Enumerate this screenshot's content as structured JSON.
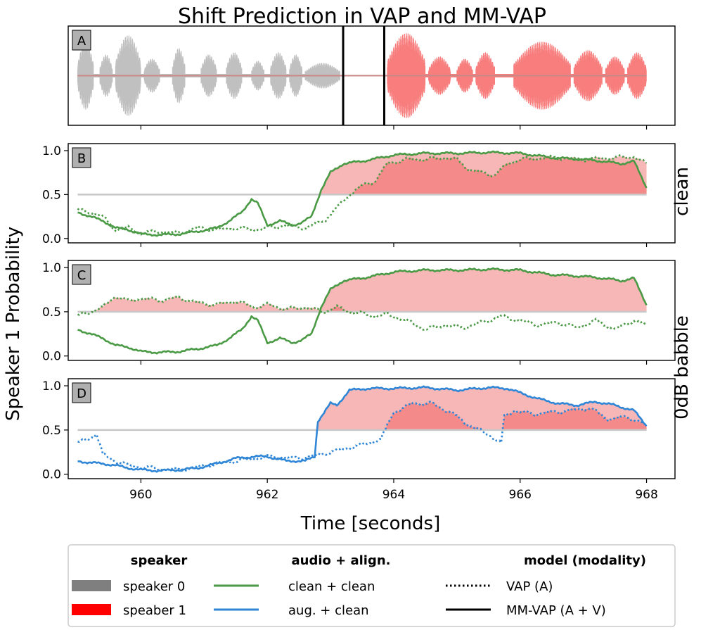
{
  "chart_data": {
    "type": "line",
    "title": "Shift Prediction in VAP and MM-VAP",
    "xlabel": "Time [seconds]",
    "ylabel": "Speaker 1 Probability",
    "xlim": [
      958.85,
      968.45
    ],
    "ylim": [
      -0.05,
      1.08
    ],
    "xticks": [
      960,
      962,
      964,
      966,
      968
    ],
    "yticks": [
      0.0,
      0.5,
      1.0
    ],
    "ytick_labels": [
      "0.0",
      "0.5",
      "1.0"
    ],
    "threshold": 0.5,
    "panels": [
      {
        "label": "A",
        "type": "waveform",
        "ylabel_right": "",
        "events": [
          963.2,
          963.85
        ],
        "segments": [
          {
            "speaker": "speaker 0",
            "start": 959.0,
            "end": 963.15,
            "bursts": [
              [
                959.0,
                959.25,
                0.8
              ],
              [
                959.35,
                959.55,
                0.5
              ],
              [
                959.6,
                960.0,
                0.95
              ],
              [
                960.05,
                960.3,
                0.4
              ],
              [
                960.5,
                960.7,
                0.65
              ],
              [
                960.95,
                961.2,
                0.5
              ],
              [
                961.35,
                961.6,
                0.55
              ],
              [
                961.75,
                961.95,
                0.35
              ],
              [
                962.05,
                962.3,
                0.55
              ],
              [
                962.35,
                962.55,
                0.5
              ],
              [
                962.6,
                963.15,
                0.3
              ]
            ]
          },
          {
            "speaker": "speaker 1",
            "start": 963.9,
            "end": 968.0,
            "bursts": [
              [
                963.9,
                964.5,
                1.0
              ],
              [
                964.55,
                964.9,
                0.45
              ],
              [
                965.0,
                965.25,
                0.4
              ],
              [
                965.3,
                965.6,
                0.55
              ],
              [
                965.9,
                966.8,
                0.8
              ],
              [
                966.85,
                967.3,
                0.6
              ],
              [
                967.35,
                967.65,
                0.45
              ],
              [
                967.7,
                968.0,
                0.55
              ]
            ]
          }
        ]
      },
      {
        "label": "B",
        "ylabel_right": "clean",
        "series": [
          {
            "name": "clean + clean",
            "model": "MM-VAP (A + V)",
            "color": "#4a9a45",
            "style": "solid",
            "x": [
              959.0,
              959.2,
              959.4,
              959.6,
              959.8,
              960.0,
              960.3,
              960.6,
              960.9,
              961.2,
              961.4,
              961.6,
              961.75,
              961.85,
              962.0,
              962.2,
              962.4,
              962.55,
              962.7,
              962.85,
              963.0,
              963.2,
              963.5,
              963.8,
              964.0,
              964.5,
              965.0,
              965.5,
              966.0,
              966.5,
              967.0,
              967.3,
              967.6,
              967.8,
              968.0
            ],
            "y": [
              0.3,
              0.25,
              0.2,
              0.12,
              0.1,
              0.05,
              0.04,
              0.05,
              0.08,
              0.12,
              0.2,
              0.3,
              0.45,
              0.4,
              0.15,
              0.2,
              0.15,
              0.18,
              0.25,
              0.55,
              0.75,
              0.85,
              0.88,
              0.92,
              0.95,
              0.97,
              0.97,
              0.98,
              0.97,
              0.92,
              0.9,
              0.88,
              0.85,
              0.88,
              0.58
            ]
          },
          {
            "name": "clean + clean",
            "model": "VAP (A)",
            "color": "#4a9a45",
            "style": "dotted",
            "x": [
              959.0,
              959.2,
              959.4,
              959.6,
              959.8,
              960.0,
              960.3,
              960.6,
              960.9,
              961.2,
              961.5,
              961.8,
              962.0,
              962.3,
              962.6,
              962.9,
              963.1,
              963.3,
              963.5,
              963.7,
              963.9,
              964.2,
              964.5,
              964.8,
              965.0,
              965.2,
              965.4,
              965.6,
              965.8,
              966.0,
              966.5,
              967.0,
              967.5,
              967.8,
              968.0
            ],
            "y": [
              0.32,
              0.3,
              0.25,
              0.1,
              0.12,
              0.06,
              0.08,
              0.06,
              0.12,
              0.1,
              0.12,
              0.1,
              0.12,
              0.15,
              0.12,
              0.2,
              0.35,
              0.5,
              0.6,
              0.65,
              0.85,
              0.9,
              0.9,
              0.92,
              0.9,
              0.78,
              0.75,
              0.72,
              0.85,
              0.9,
              0.92,
              0.9,
              0.92,
              0.93,
              0.85
            ]
          }
        ]
      },
      {
        "label": "C",
        "ylabel_right": "0dB babble",
        "series": [
          {
            "name": "clean + clean",
            "model": "MM-VAP (A + V)",
            "color": "#4a9a45",
            "style": "solid",
            "x": [
              959.0,
              959.2,
              959.4,
              959.6,
              959.8,
              960.0,
              960.3,
              960.6,
              960.9,
              961.2,
              961.4,
              961.6,
              961.75,
              961.85,
              962.0,
              962.2,
              962.4,
              962.55,
              962.7,
              962.85,
              963.0,
              963.2,
              963.5,
              963.8,
              964.0,
              964.5,
              965.0,
              965.5,
              966.0,
              966.5,
              967.0,
              967.3,
              967.6,
              967.8,
              968.0
            ],
            "y": [
              0.3,
              0.25,
              0.2,
              0.12,
              0.1,
              0.05,
              0.04,
              0.05,
              0.08,
              0.12,
              0.2,
              0.3,
              0.45,
              0.4,
              0.15,
              0.2,
              0.15,
              0.18,
              0.25,
              0.55,
              0.75,
              0.85,
              0.88,
              0.92,
              0.95,
              0.97,
              0.97,
              0.98,
              0.97,
              0.92,
              0.9,
              0.88,
              0.85,
              0.88,
              0.58
            ]
          },
          {
            "name": "clean + clean",
            "model": "VAP (A)",
            "color": "#4a9a45",
            "style": "dotted",
            "x": [
              959.0,
              959.2,
              959.4,
              959.6,
              959.8,
              960.0,
              960.3,
              960.6,
              960.9,
              961.2,
              961.5,
              961.8,
              962.0,
              962.3,
              962.6,
              962.9,
              963.1,
              963.3,
              963.5,
              963.7,
              963.9,
              964.2,
              964.5,
              964.8,
              965.1,
              965.4,
              965.7,
              966.0,
              966.3,
              966.6,
              966.9,
              967.2,
              967.5,
              967.8,
              968.0
            ],
            "y": [
              0.45,
              0.5,
              0.55,
              0.68,
              0.62,
              0.65,
              0.63,
              0.66,
              0.6,
              0.58,
              0.62,
              0.55,
              0.58,
              0.53,
              0.55,
              0.5,
              0.55,
              0.5,
              0.48,
              0.45,
              0.47,
              0.4,
              0.3,
              0.35,
              0.32,
              0.38,
              0.45,
              0.4,
              0.35,
              0.38,
              0.32,
              0.4,
              0.3,
              0.4,
              0.35
            ]
          }
        ]
      },
      {
        "label": "D",
        "ylabel_right": "",
        "series": [
          {
            "name": "aug. + clean",
            "model": "MM-VAP (A + V)",
            "color": "#2f86d6",
            "style": "solid",
            "x": [
              959.0,
              959.2,
              959.4,
              959.6,
              959.8,
              960.0,
              960.3,
              960.6,
              960.9,
              961.2,
              961.5,
              961.8,
              962.0,
              962.3,
              962.6,
              962.75,
              962.8,
              962.9,
              963.0,
              963.1,
              963.3,
              963.6,
              964.0,
              964.5,
              965.0,
              965.5,
              965.8,
              966.0,
              966.3,
              966.6,
              966.9,
              967.2,
              967.5,
              967.8,
              968.0
            ],
            "y": [
              0.15,
              0.13,
              0.12,
              0.1,
              0.07,
              0.05,
              0.04,
              0.05,
              0.07,
              0.12,
              0.18,
              0.2,
              0.2,
              0.15,
              0.15,
              0.2,
              0.6,
              0.7,
              0.8,
              0.78,
              0.95,
              0.97,
              0.97,
              0.98,
              0.95,
              0.98,
              0.97,
              0.92,
              0.85,
              0.8,
              0.78,
              0.82,
              0.78,
              0.72,
              0.55
            ]
          },
          {
            "name": "aug. + clean",
            "model": "VAP (A)",
            "color": "#2f86d6",
            "style": "dotted",
            "x": [
              959.0,
              959.3,
              959.4,
              959.6,
              959.8,
              960.0,
              960.3,
              960.6,
              960.9,
              961.2,
              961.5,
              961.8,
              962.1,
              962.4,
              962.7,
              963.0,
              963.3,
              963.6,
              963.8,
              964.0,
              964.3,
              964.6,
              964.9,
              965.2,
              965.5,
              965.7,
              965.75,
              965.9,
              966.2,
              966.5,
              966.8,
              967.1,
              967.4,
              967.7,
              968.0
            ],
            "y": [
              0.35,
              0.45,
              0.22,
              0.15,
              0.1,
              0.08,
              0.06,
              0.05,
              0.08,
              0.12,
              0.15,
              0.18,
              0.2,
              0.18,
              0.2,
              0.25,
              0.3,
              0.35,
              0.4,
              0.7,
              0.8,
              0.8,
              0.7,
              0.55,
              0.45,
              0.35,
              0.65,
              0.72,
              0.68,
              0.7,
              0.72,
              0.75,
              0.62,
              0.65,
              0.55
            ]
          }
        ]
      }
    ]
  },
  "legend": {
    "columns": [
      {
        "header": "speaker",
        "items": [
          {
            "label": "speaker 0",
            "kind": "patch",
            "color": "#7f7f7f"
          },
          {
            "label": "speaber 1",
            "kind": "patch",
            "color": "#ff0000"
          }
        ]
      },
      {
        "header": "audio + align.",
        "items": [
          {
            "label": "clean + clean",
            "kind": "line",
            "color": "#4a9a45",
            "style": "solid"
          },
          {
            "label": "aug. + clean",
            "kind": "line",
            "color": "#2f86d6",
            "style": "solid"
          }
        ]
      },
      {
        "header": "model (modality)",
        "items": [
          {
            "label": "VAP (A)",
            "kind": "line",
            "color": "#000000",
            "style": "dotted"
          },
          {
            "label": "MM-VAP (A + V)",
            "kind": "line",
            "color": "#000000",
            "style": "solid"
          }
        ]
      }
    ]
  },
  "colors": {
    "speaker0_wave": "#c0c0c0",
    "speaker1_wave": "#f87e7e",
    "fill": "#f7b7b7",
    "fill_dark": "#f48a8a",
    "threshold": "#c8c8c8"
  }
}
